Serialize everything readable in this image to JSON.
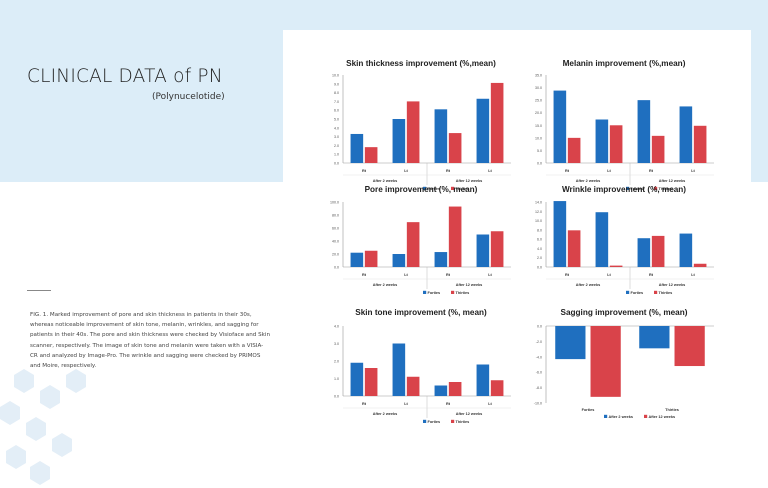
{
  "page": {
    "title": "CLINICAL DATA of PN",
    "subtitle": "(Polynucelotide)",
    "caption": "FIG. 1. Marked improvement of pore and skin thickness in patients in their 30s, whereas noticeable improvement of skin tone, melanin, wrinkles, and sagging for patients in their 40s. The pore and skin thickness were checked by Visioface and Skin scanner, respectively. The image of skin tone and melanin were taken with a VISIA-CR and analyzed by Image-Pro. The wrinkle and sagging were checked by PRIMOS and Moire, respectively.",
    "colors": {
      "band": "#dcedf8",
      "forties": "#1f6fbf",
      "thirties": "#d9434a"
    }
  },
  "chart_data": [
    {
      "type": "bar",
      "title": "Skin thickness improvement (%,mean)",
      "categories": [
        "Rt",
        "Lt",
        "Rt",
        "Lt"
      ],
      "groups": [
        "After 2 weeks",
        "After 12 weeks"
      ],
      "series": [
        {
          "name": "Forties",
          "values": [
            3.3,
            5.0,
            6.1,
            7.3
          ]
        },
        {
          "name": "Thirties",
          "values": [
            1.8,
            7.0,
            3.4,
            9.1
          ]
        }
      ],
      "ylim": [
        0,
        10
      ],
      "yticks": [
        "0.0",
        "1.0",
        "2.0",
        "3.0",
        "4.0",
        "5.0",
        "6.0",
        "7.0",
        "8.0",
        "9.0",
        "10.0"
      ],
      "grid": false
    },
    {
      "type": "bar",
      "title": "Melanin improvement (%,mean)",
      "categories": [
        "Rt",
        "Lt",
        "Rt",
        "Lt"
      ],
      "groups": [
        "After 2 weeks",
        "After 12 weeks"
      ],
      "series": [
        {
          "name": "Forties",
          "values": [
            28.8,
            17.3,
            25.0,
            22.5
          ]
        },
        {
          "name": "Thirties",
          "values": [
            10.0,
            15.0,
            10.8,
            14.8
          ]
        }
      ],
      "ylim": [
        0,
        35
      ],
      "yticks": [
        "0.0",
        "5.0",
        "10.0",
        "15.0",
        "20.0",
        "25.0",
        "30.0",
        "35.0"
      ],
      "grid": false
    },
    {
      "type": "bar",
      "title": "Pore improvement (%, mean)",
      "categories": [
        "Rt",
        "Lt",
        "Rt",
        "Lt"
      ],
      "groups": [
        "After 2 weeks",
        "After 12 weeks"
      ],
      "series": [
        {
          "name": "Forties",
          "values": [
            22.0,
            20.0,
            23.0,
            50.0
          ]
        },
        {
          "name": "Thirties",
          "values": [
            25.0,
            69.0,
            93.0,
            55.0
          ]
        }
      ],
      "ylim": [
        0,
        100
      ],
      "yticks": [
        "0.0",
        "20.0",
        "40.0",
        "60.0",
        "80.0",
        "100.0"
      ],
      "grid": false
    },
    {
      "type": "bar",
      "title": "Wrinkle improvement (%, mean)",
      "categories": [
        "Rt",
        "Lt",
        "Rt",
        "Lt"
      ],
      "groups": [
        "After 2 weeks",
        "After 12 weeks"
      ],
      "series": [
        {
          "name": "Forties",
          "values": [
            14.2,
            11.8,
            6.2,
            7.2
          ]
        },
        {
          "name": "Thirties",
          "values": [
            7.9,
            0.3,
            6.7,
            0.7
          ]
        }
      ],
      "ylim": [
        0,
        14
      ],
      "yticks": [
        "0.0",
        "2.0",
        "4.0",
        "6.0",
        "8.0",
        "10.0",
        "12.0",
        "14.0"
      ],
      "grid": false
    },
    {
      "type": "bar",
      "title": "Skin tone improvement (%, mean)",
      "categories": [
        "Rt",
        "Lt",
        "Rt",
        "Lt"
      ],
      "groups": [
        "After 2 weeks",
        "After 12 weeks"
      ],
      "series": [
        {
          "name": "Forties",
          "values": [
            1.9,
            3.0,
            0.6,
            1.8
          ]
        },
        {
          "name": "Thirties",
          "values": [
            1.6,
            1.1,
            0.8,
            0.9
          ]
        }
      ],
      "ylim": [
        0,
        4
      ],
      "yticks": [
        "0.0",
        "1.0",
        "2.0",
        "3.0",
        "4.0"
      ],
      "grid": false
    },
    {
      "type": "bar",
      "title": "Sagging improvement (%, mean)",
      "categories": [
        "Forties",
        "Thirties"
      ],
      "series": [
        {
          "name": "After 2 weeks",
          "values": [
            -4.3,
            -2.9
          ]
        },
        {
          "name": "After 12 weeks",
          "values": [
            -9.2,
            -5.2
          ]
        }
      ],
      "ylim": [
        -10,
        0
      ],
      "yticks": [
        "0.0",
        "-2.0",
        "-4.0",
        "-6.0",
        "-8.0",
        "-10.0"
      ],
      "grid": false
    }
  ]
}
